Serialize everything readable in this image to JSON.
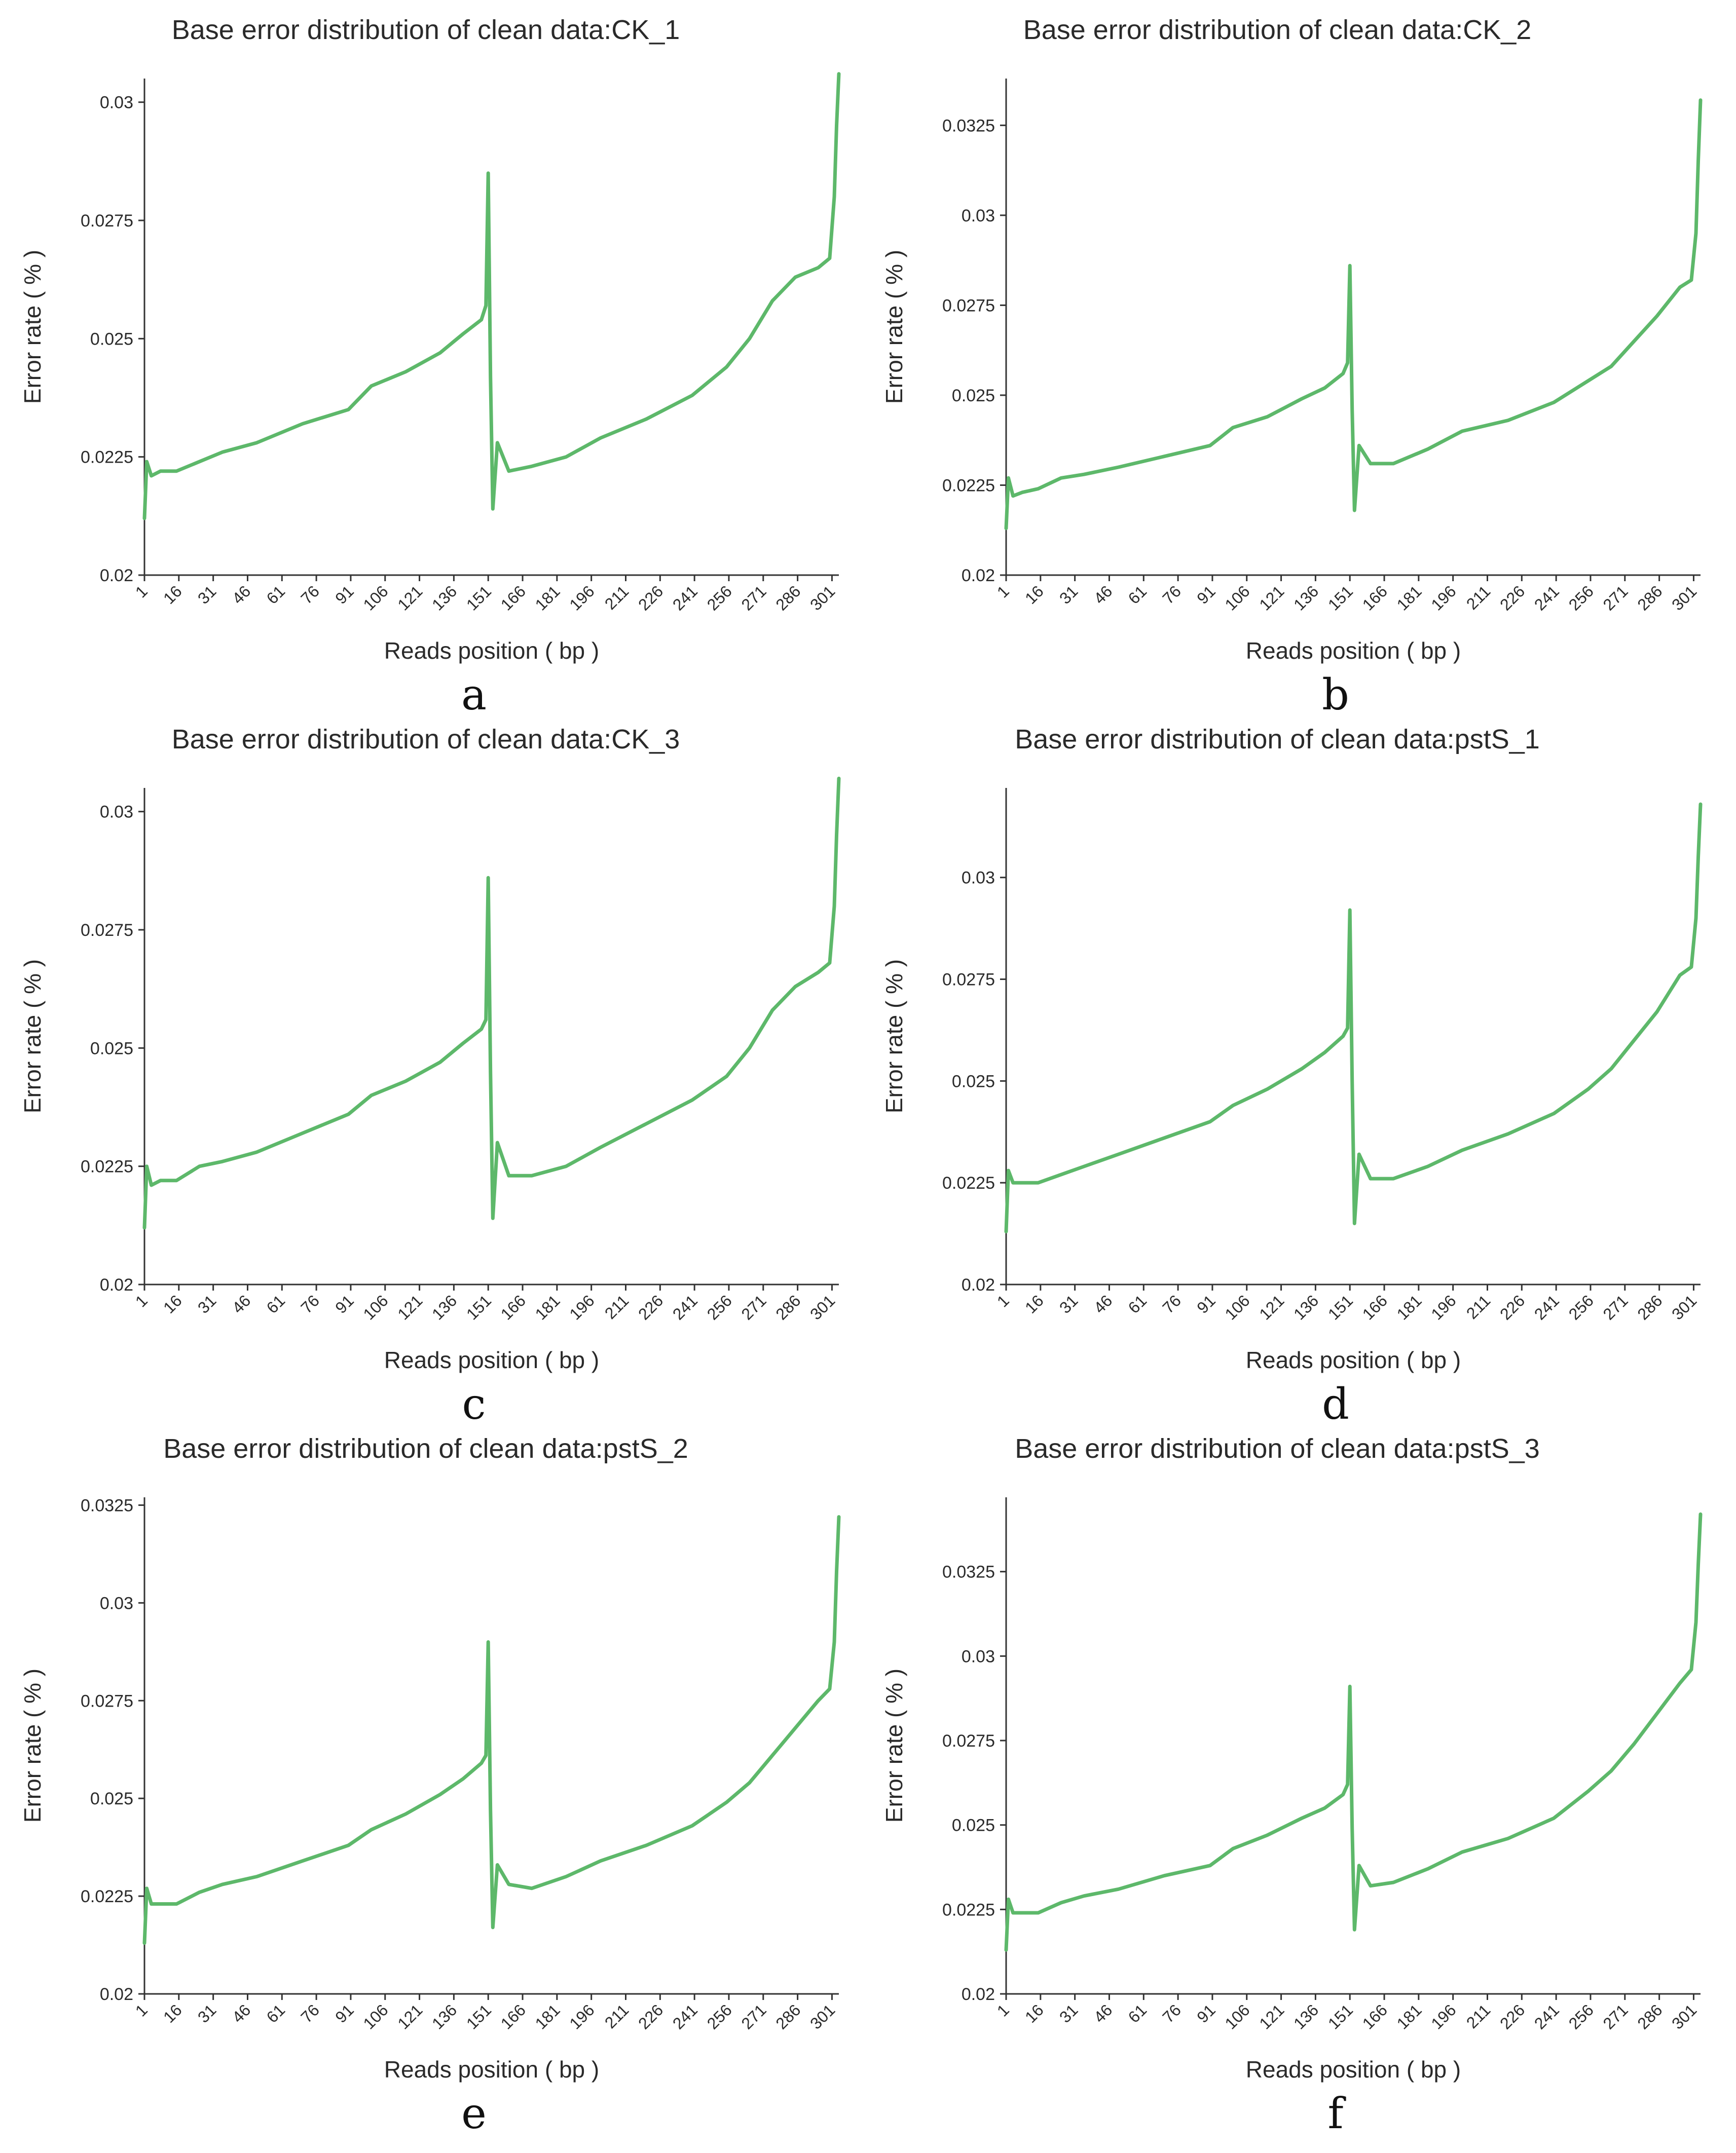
{
  "style": {
    "line_color": "#5db86a",
    "axis_color": "#333333",
    "text_color": "#2a2a2a"
  },
  "chart_data": [
    {
      "panel": "a",
      "type": "line",
      "title": "Base error distribution of clean data:CK_1",
      "xlabel": "Reads position ( bp )",
      "ylabel": "Error rate ( % )",
      "xlim": [
        1,
        304
      ],
      "ylim": [
        0.02,
        0.0305
      ],
      "yticks": [
        0.02,
        0.0225,
        0.025,
        0.0275,
        0.03
      ],
      "ytick_labels": [
        "0.02",
        "0.0225",
        "0.025",
        "0.0275",
        "0.03"
      ],
      "xticks": [
        1,
        16,
        31,
        46,
        61,
        76,
        91,
        106,
        121,
        136,
        151,
        166,
        181,
        196,
        211,
        226,
        241,
        256,
        271,
        286,
        301
      ],
      "series": [
        {
          "name": "CK_1",
          "x": [
            1,
            2,
            4,
            8,
            15,
            25,
            35,
            50,
            70,
            90,
            100,
            115,
            130,
            140,
            148,
            150,
            151,
            152,
            153,
            155,
            160,
            170,
            185,
            200,
            220,
            240,
            255,
            265,
            275,
            285,
            295,
            300,
            302,
            303,
            304
          ],
          "values": [
            0.0212,
            0.0224,
            0.0221,
            0.0222,
            0.0222,
            0.0224,
            0.0226,
            0.0228,
            0.0232,
            0.0235,
            0.024,
            0.0243,
            0.0247,
            0.0251,
            0.0254,
            0.0257,
            0.0285,
            0.0242,
            0.0214,
            0.0228,
            0.0222,
            0.0223,
            0.0225,
            0.0229,
            0.0233,
            0.0238,
            0.0244,
            0.025,
            0.0258,
            0.0263,
            0.0265,
            0.0267,
            0.028,
            0.0295,
            0.0306
          ]
        }
      ]
    },
    {
      "panel": "b",
      "type": "line",
      "title": "Base error distribution of clean data:CK_2",
      "xlabel": "Reads position ( bp )",
      "ylabel": "Error rate ( % )",
      "xlim": [
        1,
        304
      ],
      "ylim": [
        0.02,
        0.0338
      ],
      "yticks": [
        0.02,
        0.0225,
        0.025,
        0.0275,
        0.03,
        0.0325
      ],
      "ytick_labels": [
        "0.02",
        "0.0225",
        "0.025",
        "0.0275",
        "0.03",
        "0.0325"
      ],
      "xticks": [
        1,
        16,
        31,
        46,
        61,
        76,
        91,
        106,
        121,
        136,
        151,
        166,
        181,
        196,
        211,
        226,
        241,
        256,
        271,
        286,
        301
      ],
      "series": [
        {
          "name": "CK_2",
          "x": [
            1,
            2,
            4,
            8,
            15,
            25,
            35,
            50,
            70,
            90,
            100,
            115,
            130,
            140,
            148,
            150,
            151,
            152,
            153,
            155,
            160,
            170,
            185,
            200,
            220,
            240,
            255,
            265,
            275,
            285,
            295,
            300,
            302,
            303,
            304
          ],
          "values": [
            0.0213,
            0.0227,
            0.0222,
            0.0223,
            0.0224,
            0.0227,
            0.0228,
            0.023,
            0.0233,
            0.0236,
            0.0241,
            0.0244,
            0.0249,
            0.0252,
            0.0256,
            0.0259,
            0.0286,
            0.0246,
            0.0218,
            0.0236,
            0.0231,
            0.0231,
            0.0235,
            0.024,
            0.0243,
            0.0248,
            0.0254,
            0.0258,
            0.0265,
            0.0272,
            0.028,
            0.0282,
            0.0295,
            0.0315,
            0.0332
          ]
        }
      ]
    },
    {
      "panel": "c",
      "type": "line",
      "title": "Base error distribution of clean data:CK_3",
      "xlabel": "Reads position ( bp )",
      "ylabel": "Error rate ( % )",
      "xlim": [
        1,
        304
      ],
      "ylim": [
        0.02,
        0.0305
      ],
      "yticks": [
        0.02,
        0.0225,
        0.025,
        0.0275,
        0.03
      ],
      "ytick_labels": [
        "0.02",
        "0.0225",
        "0.025",
        "0.0275",
        "0.03"
      ],
      "xticks": [
        1,
        16,
        31,
        46,
        61,
        76,
        91,
        106,
        121,
        136,
        151,
        166,
        181,
        196,
        211,
        226,
        241,
        256,
        271,
        286,
        301
      ],
      "series": [
        {
          "name": "CK_3",
          "x": [
            1,
            2,
            4,
            8,
            15,
            25,
            35,
            50,
            70,
            90,
            100,
            115,
            130,
            140,
            148,
            150,
            151,
            152,
            153,
            155,
            160,
            170,
            185,
            200,
            220,
            240,
            255,
            265,
            275,
            285,
            295,
            300,
            302,
            303,
            304
          ],
          "values": [
            0.0212,
            0.0225,
            0.0221,
            0.0222,
            0.0222,
            0.0225,
            0.0226,
            0.0228,
            0.0232,
            0.0236,
            0.024,
            0.0243,
            0.0247,
            0.0251,
            0.0254,
            0.0256,
            0.0286,
            0.0245,
            0.0214,
            0.023,
            0.0223,
            0.0223,
            0.0225,
            0.0229,
            0.0234,
            0.0239,
            0.0244,
            0.025,
            0.0258,
            0.0263,
            0.0266,
            0.0268,
            0.028,
            0.0295,
            0.0307
          ]
        }
      ]
    },
    {
      "panel": "d",
      "type": "line",
      "title": "Base error distribution of clean data:pstS_1",
      "xlabel": "Reads position ( bp )",
      "ylabel": "Error rate ( % )",
      "xlim": [
        1,
        304
      ],
      "ylim": [
        0.02,
        0.0322
      ],
      "yticks": [
        0.02,
        0.0225,
        0.025,
        0.0275,
        0.03
      ],
      "ytick_labels": [
        "0.02",
        "0.0225",
        "0.025",
        "0.0275",
        "0.03"
      ],
      "xticks": [
        1,
        16,
        31,
        46,
        61,
        76,
        91,
        106,
        121,
        136,
        151,
        166,
        181,
        196,
        211,
        226,
        241,
        256,
        271,
        286,
        301
      ],
      "series": [
        {
          "name": "pstS_1",
          "x": [
            1,
            2,
            4,
            8,
            15,
            25,
            35,
            50,
            70,
            90,
            100,
            115,
            130,
            140,
            148,
            150,
            151,
            152,
            153,
            155,
            160,
            170,
            185,
            200,
            220,
            240,
            255,
            265,
            275,
            285,
            295,
            300,
            302,
            303,
            304
          ],
          "values": [
            0.0213,
            0.0228,
            0.0225,
            0.0225,
            0.0225,
            0.0227,
            0.0229,
            0.0232,
            0.0236,
            0.024,
            0.0244,
            0.0248,
            0.0253,
            0.0257,
            0.0261,
            0.0263,
            0.0292,
            0.025,
            0.0215,
            0.0232,
            0.0226,
            0.0226,
            0.0229,
            0.0233,
            0.0237,
            0.0242,
            0.0248,
            0.0253,
            0.026,
            0.0267,
            0.0276,
            0.0278,
            0.029,
            0.0305,
            0.0318
          ]
        }
      ]
    },
    {
      "panel": "e",
      "type": "line",
      "title": "Base error distribution of clean data:pstS_2",
      "xlabel": "Reads position ( bp )",
      "ylabel": "Error rate ( % )",
      "xlim": [
        1,
        304
      ],
      "ylim": [
        0.02,
        0.0327
      ],
      "yticks": [
        0.02,
        0.0225,
        0.025,
        0.0275,
        0.03,
        0.0325
      ],
      "ytick_labels": [
        "0.02",
        "0.0225",
        "0.025",
        "0.0275",
        "0.03",
        "0.0325"
      ],
      "xticks": [
        1,
        16,
        31,
        46,
        61,
        76,
        91,
        106,
        121,
        136,
        151,
        166,
        181,
        196,
        211,
        226,
        241,
        256,
        271,
        286,
        301
      ],
      "series": [
        {
          "name": "pstS_2",
          "x": [
            1,
            2,
            4,
            8,
            15,
            25,
            35,
            50,
            70,
            90,
            100,
            115,
            130,
            140,
            148,
            150,
            151,
            152,
            153,
            155,
            160,
            170,
            185,
            200,
            220,
            240,
            255,
            265,
            275,
            285,
            295,
            300,
            302,
            303,
            304
          ],
          "values": [
            0.0213,
            0.0227,
            0.0223,
            0.0223,
            0.0223,
            0.0226,
            0.0228,
            0.023,
            0.0234,
            0.0238,
            0.0242,
            0.0246,
            0.0251,
            0.0255,
            0.0259,
            0.0261,
            0.029,
            0.0247,
            0.0217,
            0.0233,
            0.0228,
            0.0227,
            0.023,
            0.0234,
            0.0238,
            0.0243,
            0.0249,
            0.0254,
            0.0261,
            0.0268,
            0.0275,
            0.0278,
            0.029,
            0.0308,
            0.0322
          ]
        }
      ]
    },
    {
      "panel": "f",
      "type": "line",
      "title": "Base error distribution of clean data:pstS_3",
      "xlabel": "Reads position ( bp )",
      "ylabel": "Error rate ( % )",
      "xlim": [
        1,
        304
      ],
      "ylim": [
        0.02,
        0.0347
      ],
      "yticks": [
        0.02,
        0.0225,
        0.025,
        0.0275,
        0.03,
        0.0325
      ],
      "ytick_labels": [
        "0.02",
        "0.0225",
        "0.025",
        "0.0275",
        "0.03",
        "0.0325"
      ],
      "xticks": [
        1,
        16,
        31,
        46,
        61,
        76,
        91,
        106,
        121,
        136,
        151,
        166,
        181,
        196,
        211,
        226,
        241,
        256,
        271,
        286,
        301
      ],
      "series": [
        {
          "name": "pstS_3",
          "x": [
            1,
            2,
            4,
            8,
            15,
            25,
            35,
            50,
            70,
            90,
            100,
            115,
            130,
            140,
            148,
            150,
            151,
            152,
            153,
            155,
            160,
            170,
            185,
            200,
            220,
            240,
            255,
            265,
            275,
            285,
            295,
            300,
            302,
            303,
            304
          ],
          "values": [
            0.0213,
            0.0228,
            0.0224,
            0.0224,
            0.0224,
            0.0227,
            0.0229,
            0.0231,
            0.0235,
            0.0238,
            0.0243,
            0.0247,
            0.0252,
            0.0255,
            0.0259,
            0.0262,
            0.0291,
            0.0249,
            0.0219,
            0.0238,
            0.0232,
            0.0233,
            0.0237,
            0.0242,
            0.0246,
            0.0252,
            0.026,
            0.0266,
            0.0274,
            0.0283,
            0.0292,
            0.0296,
            0.031,
            0.0327,
            0.0342
          ]
        }
      ]
    }
  ]
}
